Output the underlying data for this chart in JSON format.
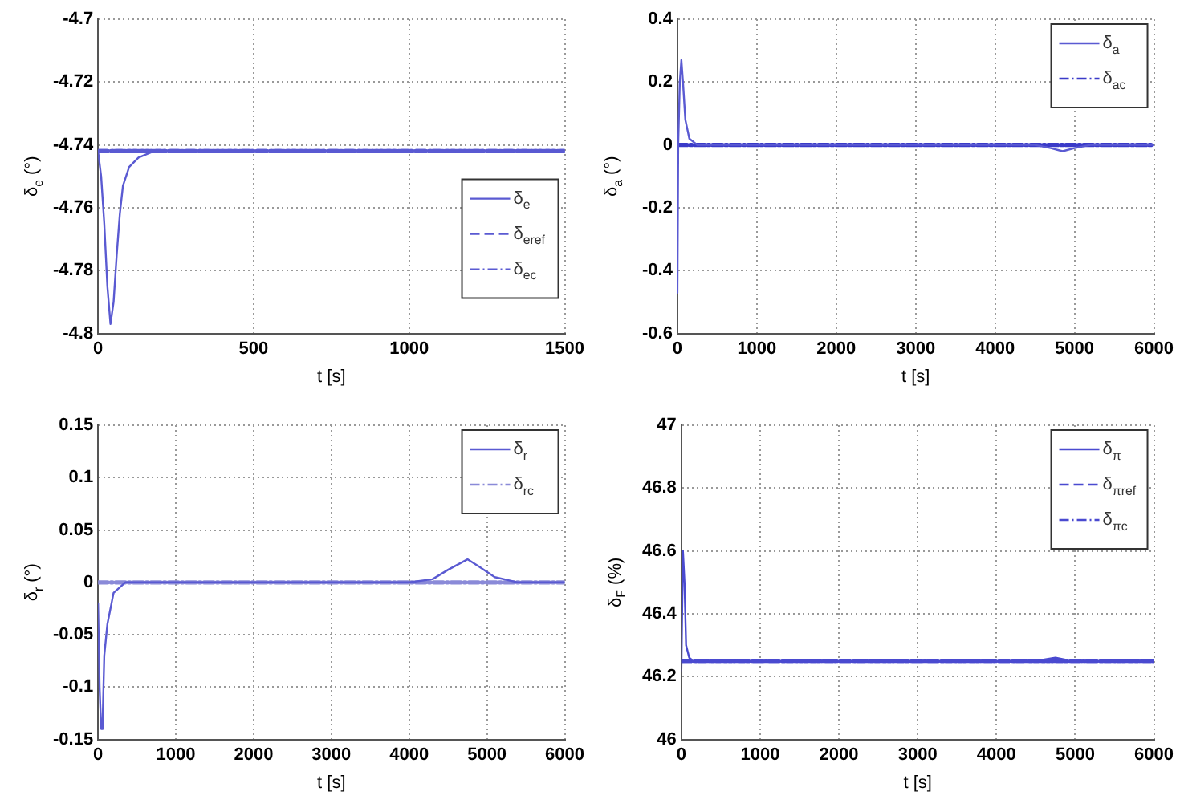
{
  "chart_data": [
    {
      "type": "line",
      "xlabel": "t [s]",
      "ylabel": "δ$_{e}$ (°)",
      "xlim": [
        0,
        1500
      ],
      "xticks": [
        0,
        500,
        1000,
        1500
      ],
      "ylim": [
        -4.8,
        -4.7
      ],
      "yticks": [
        -4.8,
        -4.78,
        -4.76,
        -4.74,
        -4.72,
        -4.7
      ],
      "grid": true,
      "legend": "bottom right",
      "series": [
        {
          "name": "δ$_{e}$",
          "color": "#5a5ad2",
          "line_style": "solid",
          "x": [
            0,
            10,
            20,
            30,
            40,
            50,
            60,
            70,
            80,
            100,
            130,
            180,
            1500
          ],
          "values": [
            -4.742,
            -4.75,
            -4.765,
            -4.785,
            -4.797,
            -4.79,
            -4.775,
            -4.762,
            -4.753,
            -4.747,
            -4.744,
            -4.742,
            -4.742
          ]
        },
        {
          "name": "δ$_{eref}$",
          "color": "#5a5ad2",
          "line_style": "dashed",
          "x": [
            0,
            1500
          ],
          "values": [
            -4.742,
            -4.742
          ]
        },
        {
          "name": "δ$_{ec}$",
          "color": "#5a5ad2",
          "line_style": "dashdot",
          "x": [
            0,
            1500
          ],
          "values": [
            -4.742,
            -4.742
          ]
        }
      ]
    },
    {
      "type": "line",
      "xlabel": "t [s]",
      "ylabel": "δ$_{a}$ (°)",
      "xlim": [
        0,
        6000
      ],
      "xticks": [
        0,
        1000,
        2000,
        3000,
        4000,
        5000,
        6000
      ],
      "ylim": [
        -0.6,
        0.4
      ],
      "yticks": [
        -0.6,
        -0.4,
        -0.2,
        0,
        0.2,
        0.4
      ],
      "grid": true,
      "legend": "top right",
      "series": [
        {
          "name": "δ$_{a}$",
          "color": "#5a5ad2",
          "line_style": "solid",
          "x": [
            0,
            10,
            30,
            50,
            70,
            100,
            150,
            250,
            4500,
            4700,
            4850,
            5000,
            5200,
            6000
          ],
          "values": [
            -0.47,
            0,
            0.2,
            0.27,
            0.2,
            0.08,
            0.02,
            0,
            0,
            -0.01,
            -0.02,
            -0.01,
            0,
            0
          ]
        },
        {
          "name": "δ$_{ac}$",
          "color": "#3a3ac8",
          "line_style": "dashdot",
          "x": [
            0,
            6000
          ],
          "values": [
            0,
            0
          ]
        }
      ]
    },
    {
      "type": "line",
      "xlabel": "t [s]",
      "ylabel": "δ$_{r}$ (°)",
      "xlim": [
        0,
        6000
      ],
      "xticks": [
        0,
        1000,
        2000,
        3000,
        4000,
        5000,
        6000
      ],
      "ylim": [
        -0.15,
        0.15
      ],
      "yticks": [
        -0.15,
        -0.1,
        -0.05,
        0,
        0.05,
        0.1,
        0.15
      ],
      "grid": true,
      "legend": "top right",
      "series": [
        {
          "name": "δ$_{r}$",
          "color": "#5a5ad2",
          "line_style": "solid",
          "x": [
            0,
            20,
            40,
            60,
            80,
            120,
            200,
            350,
            4000,
            4300,
            4500,
            4750,
            4900,
            5100,
            5400,
            6000
          ],
          "values": [
            -0.02,
            -0.1,
            -0.14,
            -0.13,
            -0.07,
            -0.04,
            -0.01,
            0,
            0,
            0.003,
            0.012,
            0.022,
            0.015,
            0.005,
            0,
            0
          ]
        },
        {
          "name": "δ$_{rc}$",
          "color": "#8a8ad8",
          "line_style": "dashdot",
          "x": [
            0,
            6000
          ],
          "values": [
            0,
            0
          ]
        }
      ]
    },
    {
      "type": "line",
      "xlabel": "t [s]",
      "ylabel": "δ$_{F}$ (%)",
      "xlim": [
        0,
        6000
      ],
      "xticks": [
        0,
        1000,
        2000,
        3000,
        4000,
        5000,
        6000
      ],
      "ylim": [
        46,
        47
      ],
      "yticks": [
        46,
        46.2,
        46.4,
        46.6,
        46.8,
        47
      ],
      "grid": true,
      "legend": "top right",
      "series": [
        {
          "name": "δ$_{π}$",
          "color": "#4a4ad0",
          "line_style": "solid",
          "x": [
            0,
            20,
            40,
            60,
            100,
            150,
            4500,
            4750,
            4950,
            6000
          ],
          "values": [
            46.22,
            46.6,
            46.5,
            46.3,
            46.26,
            46.25,
            46.25,
            46.26,
            46.25,
            46.25
          ]
        },
        {
          "name": "δ$_{πref}$",
          "color": "#4a4ad0",
          "line_style": "dashed",
          "x": [
            0,
            6000
          ],
          "values": [
            46.25,
            46.25
          ]
        },
        {
          "name": "δ$_{πc}$",
          "color": "#4a4ad0",
          "line_style": "dashdot",
          "x": [
            0,
            6000
          ],
          "values": [
            46.25,
            46.25
          ]
        }
      ]
    }
  ]
}
